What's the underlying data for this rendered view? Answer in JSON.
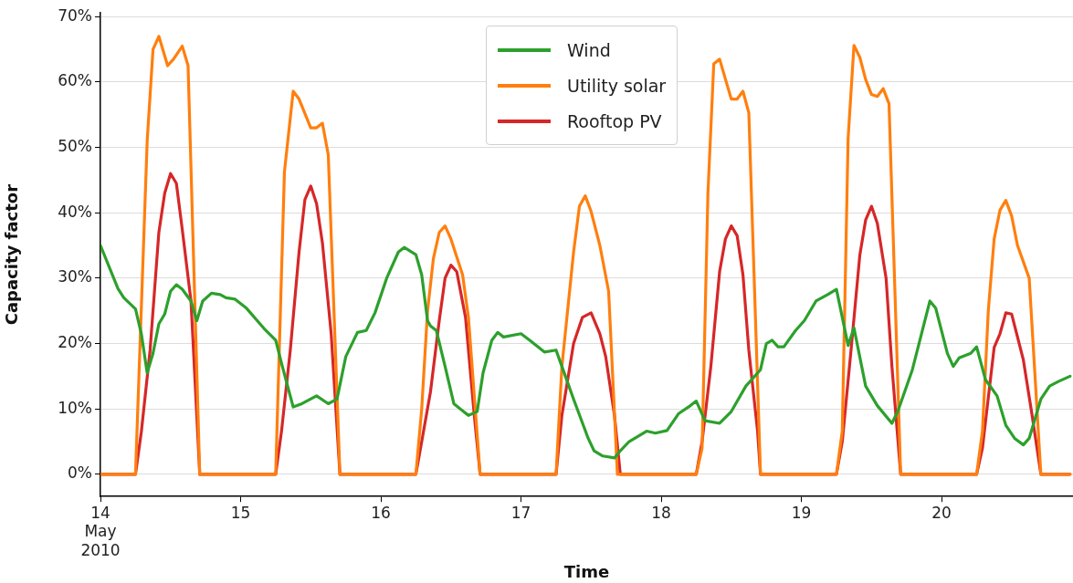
{
  "chart_data": {
    "type": "line",
    "xlabel": "Time",
    "ylabel": "Capacity factor",
    "legend": "top",
    "grid": "y",
    "marker": "none",
    "line_style": "solid",
    "xlim": [
      "2010-05-14T00:00",
      "2010-05-20T22:30"
    ],
    "xticks": [
      {
        "value": "2010-05-14",
        "label": "14\nMay\n2010"
      },
      {
        "value": "2010-05-15",
        "label": "15"
      },
      {
        "value": "2010-05-16",
        "label": "16"
      },
      {
        "value": "2010-05-17",
        "label": "17"
      },
      {
        "value": "2010-05-18",
        "label": "18"
      },
      {
        "value": "2010-05-19",
        "label": "19"
      },
      {
        "value": "2010-05-20",
        "label": "20"
      }
    ],
    "ylim": [
      -3.4,
      70.6
    ],
    "yticks": [
      {
        "value": 0,
        "label": "0%"
      },
      {
        "value": 10,
        "label": "10%"
      },
      {
        "value": 20,
        "label": "20%"
      },
      {
        "value": 30,
        "label": "30%"
      },
      {
        "value": 40,
        "label": "40%"
      },
      {
        "value": 50,
        "label": "50%"
      },
      {
        "value": 60,
        "label": "60%"
      },
      {
        "value": 70,
        "label": "70%"
      }
    ],
    "series": [
      {
        "name": "Wind",
        "color": "#2ca02c",
        "x": [
          "2010-05-14T00:00",
          "2010-05-14T03:00",
          "2010-05-14T04:00",
          "2010-05-14T06:00",
          "2010-05-14T07:00",
          "2010-05-14T08:00",
          "2010-05-14T09:00",
          "2010-05-14T10:00",
          "2010-05-14T11:00",
          "2010-05-14T12:00",
          "2010-05-14T13:00",
          "2010-05-14T14:00",
          "2010-05-14T15:30",
          "2010-05-14T16:30",
          "2010-05-14T17:30",
          "2010-05-14T19:00",
          "2010-05-14T20:30",
          "2010-05-14T21:30",
          "2010-05-14T23:00",
          "2010-05-15T01:00",
          "2010-05-15T04:00",
          "2010-05-15T06:00",
          "2010-05-15T07:00",
          "2010-05-15T09:00",
          "2010-05-15T10:30",
          "2010-05-15T13:00",
          "2010-05-15T15:00",
          "2010-05-15T16:30",
          "2010-05-15T18:00",
          "2010-05-15T20:00",
          "2010-05-15T21:30",
          "2010-05-15T23:00",
          "2010-05-16T01:00",
          "2010-05-16T03:00",
          "2010-05-16T04:00",
          "2010-05-16T06:00",
          "2010-05-16T07:00",
          "2010-05-16T08:00",
          "2010-05-16T08:30",
          "2010-05-16T09:30",
          "2010-05-16T11:00",
          "2010-05-16T12:30",
          "2010-05-16T15:00",
          "2010-05-16T16:30",
          "2010-05-16T17:30",
          "2010-05-16T19:00",
          "2010-05-16T20:00",
          "2010-05-16T21:00",
          "2010-05-17T00:00",
          "2010-05-17T01:30",
          "2010-05-17T04:00",
          "2010-05-17T06:00",
          "2010-05-17T07:00",
          "2010-05-17T09:00",
          "2010-05-17T11:30",
          "2010-05-17T12:30",
          "2010-05-17T14:00",
          "2010-05-17T16:00",
          "2010-05-17T17:00",
          "2010-05-17T18:30",
          "2010-05-17T20:00",
          "2010-05-17T21:30",
          "2010-05-17T23:00",
          "2010-05-18T01:00",
          "2010-05-18T03:00",
          "2010-05-18T05:00",
          "2010-05-18T06:00",
          "2010-05-18T07:30",
          "2010-05-18T10:00",
          "2010-05-18T12:00",
          "2010-05-18T14:30",
          "2010-05-18T17:00",
          "2010-05-18T18:00",
          "2010-05-18T19:00",
          "2010-05-18T20:00",
          "2010-05-18T21:00",
          "2010-05-18T23:00",
          "2010-05-19T00:30",
          "2010-05-19T02:30",
          "2010-05-19T04:30",
          "2010-05-19T06:00",
          "2010-05-19T08:00",
          "2010-05-19T09:00",
          "2010-05-19T11:00",
          "2010-05-19T13:00",
          "2010-05-19T15:30",
          "2010-05-19T16:30",
          "2010-05-19T19:00",
          "2010-05-19T22:00",
          "2010-05-19T23:00",
          "2010-05-20T01:00",
          "2010-05-20T02:00",
          "2010-05-20T03:00",
          "2010-05-20T05:00",
          "2010-05-20T06:00",
          "2010-05-20T07:30",
          "2010-05-20T09:30",
          "2010-05-20T11:00",
          "2010-05-20T12:30",
          "2010-05-20T14:00",
          "2010-05-20T15:00",
          "2010-05-20T17:00",
          "2010-05-20T18:30",
          "2010-05-20T20:00",
          "2010-05-20T22:00"
        ],
        "values": [
          35,
          28.4,
          27,
          25.3,
          21.5,
          15.5,
          18.5,
          23,
          24.5,
          28,
          29,
          28.3,
          26.5,
          23.5,
          26.5,
          27.7,
          27.5,
          27,
          26.8,
          25.4,
          22.3,
          20.5,
          17,
          10.3,
          10.8,
          12,
          10.8,
          11.5,
          18,
          21.7,
          22,
          24.7,
          30,
          34,
          34.7,
          33.6,
          30.5,
          23.5,
          22.7,
          22,
          16.5,
          10.8,
          9,
          9.6,
          15.5,
          20.5,
          21.7,
          21,
          21.5,
          20.5,
          18.7,
          19,
          16.5,
          11.5,
          5.5,
          3.6,
          2.8,
          2.5,
          3.6,
          5,
          5.8,
          6.6,
          6.3,
          6.7,
          9.3,
          10.5,
          11.2,
          8.2,
          7.8,
          9.6,
          13.5,
          16,
          20,
          20.5,
          19.5,
          19.5,
          22,
          23.5,
          26.5,
          27.5,
          28.3,
          19.7,
          22.4,
          13.5,
          10.5,
          7.8,
          9.6,
          16,
          26.5,
          25.4,
          18.5,
          16.5,
          17.8,
          18.5,
          19.5,
          14.5,
          12,
          7.5,
          5.5,
          4.5,
          5.5,
          11.5,
          13.5,
          14.2,
          15
        ]
      },
      {
        "name": "Utility solar",
        "color": "#ff7f0e",
        "x": [
          "2010-05-14T00:00",
          "2010-05-14T06:00",
          "2010-05-14T08:00",
          "2010-05-14T09:00",
          "2010-05-14T10:00",
          "2010-05-14T11:30",
          "2010-05-14T12:30",
          "2010-05-14T14:00",
          "2010-05-14T15:00",
          "2010-05-14T17:00",
          "2010-05-15T06:00",
          "2010-05-15T07:30",
          "2010-05-15T09:00",
          "2010-05-15T10:00",
          "2010-05-15T12:00",
          "2010-05-15T13:00",
          "2010-05-15T14:00",
          "2010-05-15T15:00",
          "2010-05-15T17:00",
          "2010-05-16T06:00",
          "2010-05-16T07:00",
          "2010-05-16T08:00",
          "2010-05-16T09:00",
          "2010-05-16T10:00",
          "2010-05-16T11:00",
          "2010-05-16T12:00",
          "2010-05-16T14:00",
          "2010-05-16T15:00",
          "2010-05-16T17:00",
          "2010-05-17T06:00",
          "2010-05-17T07:00",
          "2010-05-17T09:00",
          "2010-05-17T10:00",
          "2010-05-17T11:00",
          "2010-05-17T12:00",
          "2010-05-17T13:30",
          "2010-05-17T15:00",
          "2010-05-17T16:30",
          "2010-05-18T06:00",
          "2010-05-18T07:00",
          "2010-05-18T08:00",
          "2010-05-18T09:00",
          "2010-05-18T10:00",
          "2010-05-18T12:00",
          "2010-05-18T13:00",
          "2010-05-18T14:00",
          "2010-05-18T15:00",
          "2010-05-18T17:00",
          "2010-05-19T06:00",
          "2010-05-19T07:00",
          "2010-05-19T08:00",
          "2010-05-19T09:00",
          "2010-05-19T10:00",
          "2010-05-19T11:00",
          "2010-05-19T12:00",
          "2010-05-19T13:00",
          "2010-05-19T14:00",
          "2010-05-19T15:00",
          "2010-05-19T17:00",
          "2010-05-20T06:00",
          "2010-05-20T07:00",
          "2010-05-20T08:00",
          "2010-05-20T09:00",
          "2010-05-20T10:00",
          "2010-05-20T11:00",
          "2010-05-20T12:00",
          "2010-05-20T13:00",
          "2010-05-20T15:00",
          "2010-05-20T17:00",
          "2010-05-20T22:00"
        ],
        "values": [
          0,
          0,
          51,
          65,
          67,
          62.5,
          63.5,
          65.5,
          62.5,
          0,
          0,
          46.3,
          58.6,
          57.4,
          53,
          53,
          53.7,
          48.9,
          0,
          0,
          10,
          25,
          33,
          37,
          38,
          36,
          30.5,
          24,
          0,
          0,
          16.5,
          34,
          41,
          42.6,
          40.2,
          35,
          28,
          0,
          0,
          4,
          43,
          62.8,
          63.5,
          57.4,
          57.4,
          58.6,
          55.3,
          0,
          0,
          6.6,
          51.4,
          65.6,
          63.8,
          60.4,
          58.1,
          57.8,
          59,
          56.7,
          0,
          0,
          6.6,
          25,
          36,
          40.4,
          41.9,
          39.5,
          35,
          30,
          0,
          0
        ]
      },
      {
        "name": "Rooftop PV",
        "color": "#d62728",
        "x": [
          "2010-05-14T00:00",
          "2010-05-14T06:00",
          "2010-05-14T07:00",
          "2010-05-14T08:30",
          "2010-05-14T10:00",
          "2010-05-14T11:00",
          "2010-05-14T12:00",
          "2010-05-14T13:00",
          "2010-05-14T14:00",
          "2010-05-14T15:30",
          "2010-05-14T17:00",
          "2010-05-15T06:00",
          "2010-05-15T07:00",
          "2010-05-15T08:30",
          "2010-05-15T10:00",
          "2010-05-15T11:00",
          "2010-05-15T12:00",
          "2010-05-15T13:00",
          "2010-05-15T14:00",
          "2010-05-15T15:30",
          "2010-05-15T17:00",
          "2010-05-16T06:00",
          "2010-05-16T07:00",
          "2010-05-16T08:30",
          "2010-05-16T10:00",
          "2010-05-16T11:00",
          "2010-05-16T12:00",
          "2010-05-16T13:00",
          "2010-05-16T14:30",
          "2010-05-16T16:00",
          "2010-05-16T17:00",
          "2010-05-17T06:00",
          "2010-05-17T07:00",
          "2010-05-17T09:00",
          "2010-05-17T10:30",
          "2010-05-17T12:00",
          "2010-05-17T13:30",
          "2010-05-17T14:30",
          "2010-05-17T16:00",
          "2010-05-17T17:00",
          "2010-05-18T06:00",
          "2010-05-18T07:00",
          "2010-05-18T08:30",
          "2010-05-18T10:00",
          "2010-05-18T11:00",
          "2010-05-18T12:00",
          "2010-05-18T13:00",
          "2010-05-18T14:00",
          "2010-05-18T15:00",
          "2010-05-18T16:30",
          "2010-05-18T17:00",
          "2010-05-19T06:00",
          "2010-05-19T07:00",
          "2010-05-19T08:30",
          "2010-05-19T10:00",
          "2010-05-19T11:00",
          "2010-05-19T12:00",
          "2010-05-19T13:00",
          "2010-05-19T14:30",
          "2010-05-19T15:30",
          "2010-05-19T17:00",
          "2010-05-20T06:00",
          "2010-05-20T07:00",
          "2010-05-20T09:00",
          "2010-05-20T10:00",
          "2010-05-20T11:00",
          "2010-05-20T12:00",
          "2010-05-20T14:00",
          "2010-05-20T15:30",
          "2010-05-20T17:00",
          "2010-05-20T22:00"
        ],
        "values": [
          0,
          0,
          6.5,
          19,
          37,
          43,
          46,
          44.5,
          37.5,
          26.5,
          0,
          0,
          6.6,
          19,
          34,
          42,
          44.1,
          41.4,
          35.4,
          21.5,
          0,
          0,
          5,
          12.6,
          23.5,
          30,
          32,
          31,
          24,
          9,
          0,
          0,
          9,
          20,
          24,
          24.7,
          21.5,
          18,
          9,
          0,
          0,
          5,
          16.5,
          31,
          36,
          38,
          36.5,
          30.5,
          19,
          6.6,
          0,
          0,
          5,
          19,
          33.5,
          38.9,
          41,
          38.4,
          30,
          16.5,
          0,
          0,
          4,
          19.4,
          21.5,
          24.7,
          24.5,
          17.5,
          9,
          0,
          0
        ]
      }
    ]
  }
}
